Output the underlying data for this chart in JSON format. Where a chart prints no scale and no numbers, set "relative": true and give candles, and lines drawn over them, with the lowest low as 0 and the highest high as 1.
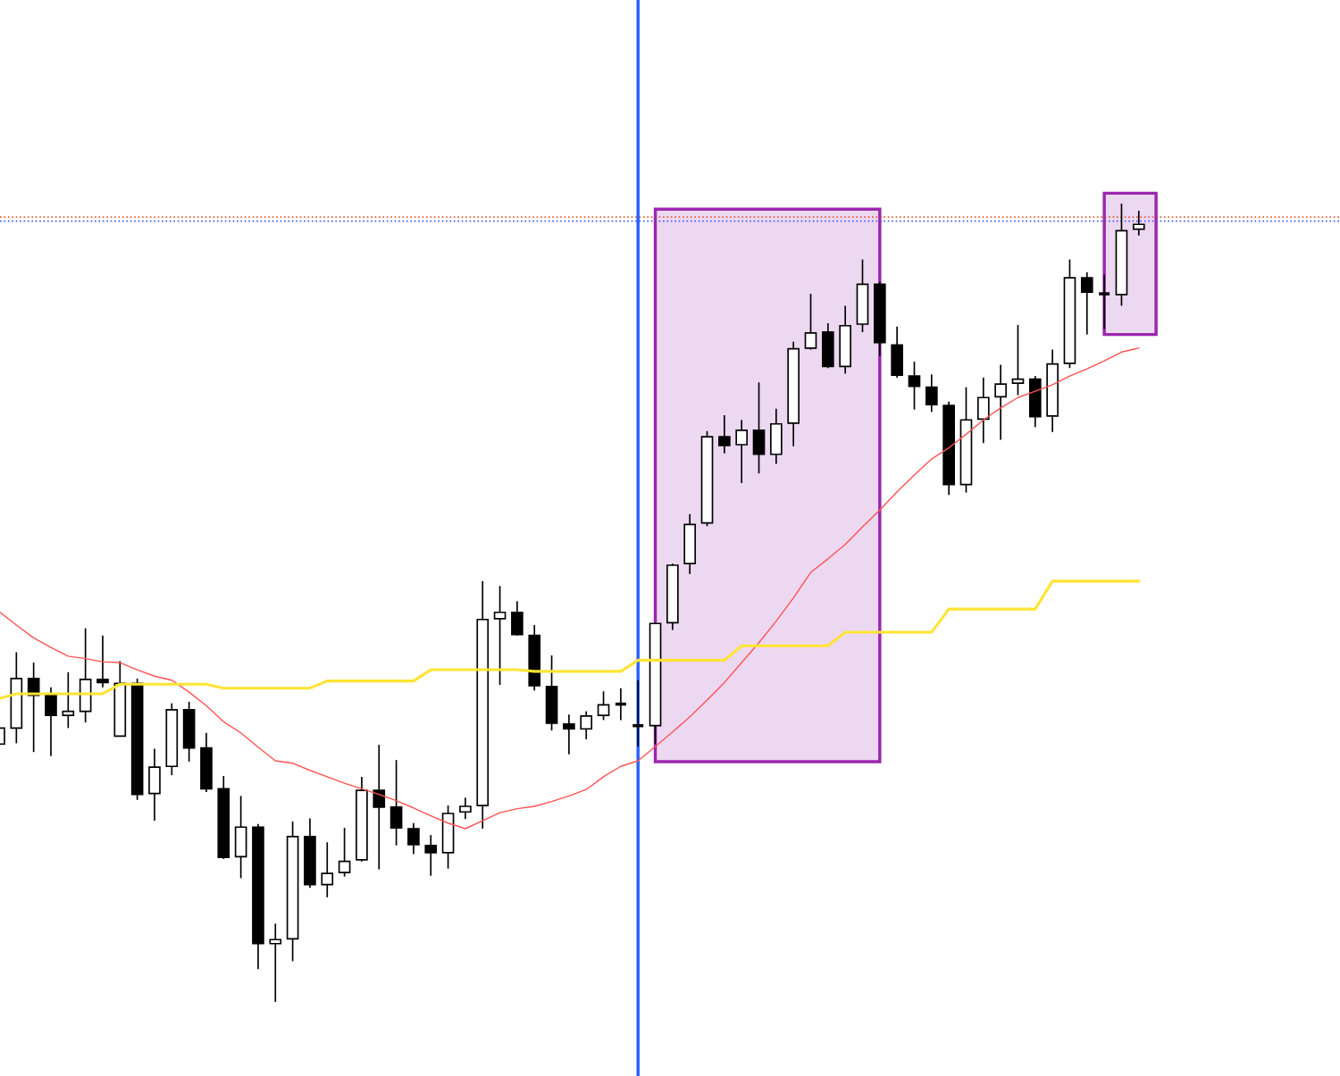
{
  "chart_data": {
    "type": "candlestick",
    "relative": true,
    "categories": [
      null,
      null,
      null,
      null,
      null,
      null,
      null,
      null,
      null,
      null,
      null,
      null,
      null,
      null,
      null,
      null,
      null,
      null,
      null,
      null,
      null,
      null,
      null,
      null,
      null,
      null,
      null,
      null,
      null,
      null,
      null,
      null,
      null,
      null,
      null,
      null,
      null,
      null,
      null,
      null,
      null,
      null,
      null,
      null,
      null,
      null,
      null,
      null,
      null,
      null,
      null,
      null,
      null,
      null,
      null,
      null,
      null,
      null,
      null,
      null,
      null,
      null,
      null,
      null,
      null,
      null,
      null
    ],
    "ohlc": [
      [
        0.323,
        0.346,
        0.321,
        0.343
      ],
      [
        0.343,
        0.438,
        0.324,
        0.405
      ],
      [
        0.405,
        0.425,
        0.313,
        0.384
      ],
      [
        0.384,
        0.394,
        0.308,
        0.359
      ],
      [
        0.359,
        0.413,
        0.343,
        0.364
      ],
      [
        0.364,
        0.468,
        0.35,
        0.404
      ],
      [
        0.404,
        0.459,
        0.394,
        0.4
      ],
      [
        0.333,
        0.427,
        0.333,
        0.399
      ],
      [
        0.399,
        0.405,
        0.253,
        0.26
      ],
      [
        0.261,
        0.317,
        0.227,
        0.294
      ],
      [
        0.295,
        0.374,
        0.284,
        0.366
      ],
      [
        0.366,
        0.376,
        0.301,
        0.318
      ],
      [
        0.318,
        0.337,
        0.263,
        0.267
      ],
      [
        0.267,
        0.283,
        0.179,
        0.181
      ],
      [
        0.182,
        0.258,
        0.155,
        0.219
      ],
      [
        0.219,
        0.223,
        0.041,
        0.073
      ],
      [
        0.073,
        0.098,
        0.0,
        0.078
      ],
      [
        0.079,
        0.226,
        0.051,
        0.207
      ],
      [
        0.207,
        0.23,
        0.143,
        0.147
      ],
      [
        0.147,
        0.2,
        0.131,
        0.161
      ],
      [
        0.162,
        0.218,
        0.157,
        0.176
      ],
      [
        0.178,
        0.282,
        0.176,
        0.265
      ],
      [
        0.265,
        0.322,
        0.166,
        0.244
      ],
      [
        0.244,
        0.303,
        0.196,
        0.218
      ],
      [
        0.217,
        0.224,
        0.185,
        0.197
      ],
      [
        0.196,
        0.209,
        0.158,
        0.187
      ],
      [
        0.187,
        0.246,
        0.167,
        0.236
      ],
      [
        0.238,
        0.256,
        0.229,
        0.245
      ],
      [
        0.246,
        0.527,
        0.217,
        0.479
      ],
      [
        0.48,
        0.521,
        0.397,
        0.488
      ],
      [
        0.488,
        0.502,
        0.459,
        0.46
      ],
      [
        0.459,
        0.472,
        0.39,
        0.396
      ],
      [
        0.395,
        0.434,
        0.34,
        0.349
      ],
      [
        0.348,
        0.36,
        0.31,
        0.342
      ],
      [
        0.342,
        0.364,
        0.329,
        0.358
      ],
      [
        0.359,
        0.389,
        0.353,
        0.372
      ],
      [
        0.372,
        0.393,
        0.353,
        0.374
      ],
      [
        0.347,
        0.403,
        0.32,
        0.345
      ],
      [
        0.346,
        0.475,
        0.323,
        0.474
      ],
      [
        0.475,
        0.549,
        0.466,
        0.547
      ],
      [
        0.549,
        0.611,
        0.536,
        0.598
      ],
      [
        0.6,
        0.715,
        0.596,
        0.708
      ],
      [
        0.708,
        0.735,
        0.687,
        0.697
      ],
      [
        0.698,
        0.729,
        0.65,
        0.716
      ],
      [
        0.716,
        0.776,
        0.662,
        0.686
      ],
      [
        0.686,
        0.743,
        0.674,
        0.724
      ],
      [
        0.725,
        0.827,
        0.696,
        0.818
      ],
      [
        0.819,
        0.887,
        0.817,
        0.838
      ],
      [
        0.839,
        0.85,
        0.794,
        0.796
      ],
      [
        0.796,
        0.872,
        0.787,
        0.847
      ],
      [
        0.849,
        0.93,
        0.839,
        0.899
      ],
      [
        0.899,
        0.902,
        0.809,
        0.826
      ],
      [
        0.823,
        0.846,
        0.782,
        0.785
      ],
      [
        0.784,
        0.802,
        0.742,
        0.771
      ],
      [
        0.77,
        0.786,
        0.739,
        0.748
      ],
      [
        0.747,
        0.752,
        0.635,
        0.648
      ],
      [
        0.648,
        0.77,
        0.638,
        0.729
      ],
      [
        0.73,
        0.782,
        0.7,
        0.757
      ],
      [
        0.758,
        0.798,
        0.704,
        0.774
      ],
      [
        0.775,
        0.848,
        0.76,
        0.78
      ],
      [
        0.78,
        0.784,
        0.72,
        0.733
      ],
      [
        0.734,
        0.817,
        0.714,
        0.799
      ],
      [
        0.8,
        0.93,
        0.794,
        0.907
      ],
      [
        0.907,
        0.914,
        0.836,
        0.889
      ],
      [
        0.888,
        0.911,
        0.843,
        0.886
      ],
      [
        0.886,
        1.0,
        0.872,
        0.966
      ],
      [
        0.968,
        0.991,
        0.96,
        0.974
      ]
    ],
    "series": [
      {
        "type": "line",
        "color": "#ff5252",
        "values": [
          0.489,
          0.472,
          0.456,
          0.444,
          0.433,
          0.43,
          0.426,
          0.425,
          0.416,
          0.408,
          0.403,
          0.388,
          0.371,
          0.351,
          0.337,
          0.319,
          0.302,
          0.299,
          0.29,
          0.282,
          0.274,
          0.267,
          0.26,
          0.252,
          0.243,
          0.233,
          0.224,
          0.217,
          0.227,
          0.237,
          0.242,
          0.245,
          0.251,
          0.258,
          0.266,
          0.282,
          0.295,
          0.302,
          0.32,
          0.338,
          0.357,
          0.378,
          0.4,
          0.425,
          0.45,
          0.477,
          0.506,
          0.538,
          0.555,
          0.573,
          0.595,
          0.616,
          0.639,
          0.66,
          0.68,
          0.694,
          0.711,
          0.729,
          0.744,
          0.757,
          0.765,
          0.773,
          0.784,
          0.793,
          0.803,
          0.814,
          0.819
        ]
      },
      {
        "type": "line",
        "color": "#ffe433",
        "values": [
          0.38,
          0.386,
          0.386,
          0.386,
          0.386,
          0.386,
          0.386,
          0.398,
          0.398,
          0.398,
          0.398,
          0.398,
          0.398,
          0.393,
          0.393,
          0.393,
          0.393,
          0.393,
          0.393,
          0.402,
          0.402,
          0.402,
          0.402,
          0.402,
          0.402,
          0.416,
          0.416,
          0.416,
          0.416,
          0.416,
          0.416,
          0.414,
          0.414,
          0.414,
          0.414,
          0.414,
          0.414,
          0.428,
          0.428,
          0.428,
          0.428,
          0.428,
          0.428,
          0.446,
          0.446,
          0.446,
          0.446,
          0.446,
          0.446,
          0.463,
          0.463,
          0.463,
          0.463,
          0.463,
          0.463,
          0.492,
          0.492,
          0.492,
          0.492,
          0.492,
          0.492,
          0.527,
          0.527,
          0.527,
          0.527,
          0.527,
          0.527
        ]
      }
    ],
    "ref_lines": [
      {
        "axis": "y",
        "value": 0.983,
        "color": "#e06040",
        "line_style": "dotted"
      },
      {
        "axis": "y",
        "value": 0.978,
        "color": "#4a5cff",
        "line_style": "dotted"
      }
    ]
  }
}
